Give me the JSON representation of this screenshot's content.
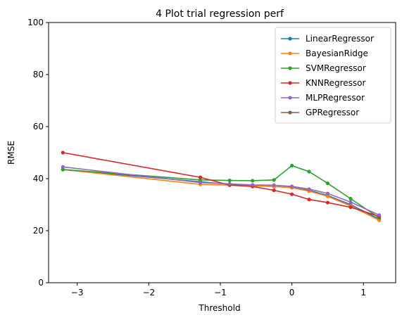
{
  "chart_data": {
    "type": "line",
    "title": "4 Plot trial regression perf",
    "xlabel": "Threshold",
    "ylabel": "RMSE",
    "xlim": [
      -3.4,
      1.45
    ],
    "ylim": [
      0,
      100
    ],
    "xticks": [
      -3,
      -2,
      -1,
      0,
      1
    ],
    "yticks": [
      0,
      20,
      40,
      60,
      80,
      100
    ],
    "grid": false,
    "legend_position": "top-right",
    "series": [
      {
        "name": "LinearRegressor",
        "color": "#1f77b4",
        "x": [
          -3.2,
          -1.28,
          -0.87,
          -0.55,
          -0.25,
          0.0,
          0.24,
          0.5,
          0.82,
          1.22
        ],
        "y": [
          43.5,
          38.8,
          37.8,
          37.3,
          37.0,
          36.6,
          35.5,
          33.5,
          30.0,
          24.5
        ]
      },
      {
        "name": "BayesianRidge",
        "color": "#ff7f0e",
        "x": [
          -3.2,
          -1.28,
          -0.87,
          -0.55,
          -0.25,
          0.0,
          0.24,
          0.5,
          0.82,
          1.22
        ],
        "y": [
          43.5,
          37.8,
          37.5,
          37.2,
          37.0,
          36.5,
          35.2,
          33.2,
          29.5,
          24.0
        ]
      },
      {
        "name": "SVMRegressor",
        "color": "#2ca02c",
        "x": [
          -3.2,
          -1.28,
          -0.87,
          -0.55,
          -0.25,
          0.0,
          0.24,
          0.5,
          0.82,
          1.22
        ],
        "y": [
          43.5,
          39.5,
          39.3,
          39.2,
          39.5,
          45.0,
          42.7,
          38.2,
          32.3,
          25.0
        ]
      },
      {
        "name": "KNNRegressor",
        "color": "#d62728",
        "x": [
          -3.2,
          -1.28,
          -0.87,
          -0.55,
          -0.25,
          0.0,
          0.24,
          0.5,
          0.82,
          1.22
        ],
        "y": [
          50.0,
          40.5,
          37.5,
          37.0,
          35.5,
          34.0,
          32.0,
          30.8,
          29.0,
          25.5
        ]
      },
      {
        "name": "MLPRegressor",
        "color": "#9467bd",
        "x": [
          -3.2,
          -1.28,
          -0.87,
          -0.55,
          -0.25,
          0.0,
          0.24,
          0.5,
          0.82,
          1.22
        ],
        "y": [
          44.5,
          38.5,
          38.0,
          37.6,
          37.5,
          37.0,
          36.0,
          34.3,
          31.0,
          26.0
        ]
      },
      {
        "name": "GPRegressor",
        "color": "#8c564b",
        "x": [],
        "y": []
      }
    ]
  }
}
